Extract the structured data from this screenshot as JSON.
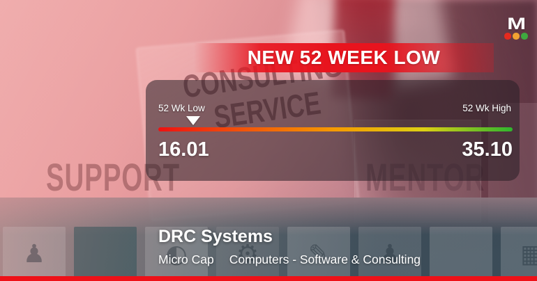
{
  "logo": {
    "letter": "M",
    "dot_colors": [
      "#e62a1e",
      "#f0a232",
      "#3fa83f"
    ]
  },
  "banner": {
    "label": "NEW 52 WEEK LOW",
    "color": "#e8141e"
  },
  "range_panel": {
    "low_label": "52 Wk Low",
    "high_label": "52 Wk High",
    "low_value": "16.01",
    "high_value": "35.10",
    "marker_position_pct": 9.8,
    "bar_gradient": [
      "#ee1111",
      "#f2570a",
      "#f59b00",
      "#ddd014",
      "#2eb52e"
    ]
  },
  "chart_data": {
    "type": "bar",
    "title": "NEW 52 WEEK LOW",
    "categories": [
      "52 Wk Low",
      "52 Wk High"
    ],
    "values": [
      16.01,
      35.1
    ],
    "marker_value": 16.01,
    "xlabel": "",
    "ylabel": "",
    "legend": false,
    "layout_hint": "horizontal gradient range bar red-to-green with white marker at low end"
  },
  "background_words": {
    "card_line1": "CONSULTING",
    "card_line2": "SERVICE",
    "left": "SUPPORT",
    "right": "MENTOR"
  },
  "tiles": {
    "glyphs": [
      "♟",
      "",
      "◐",
      "⚙",
      "✎",
      "♟",
      "",
      "▦"
    ]
  },
  "company": {
    "name": "DRC Systems",
    "market_cap": "Micro Cap",
    "sector": "Computers - Software & Consulting"
  },
  "footer_bar_color": "#ee1118"
}
